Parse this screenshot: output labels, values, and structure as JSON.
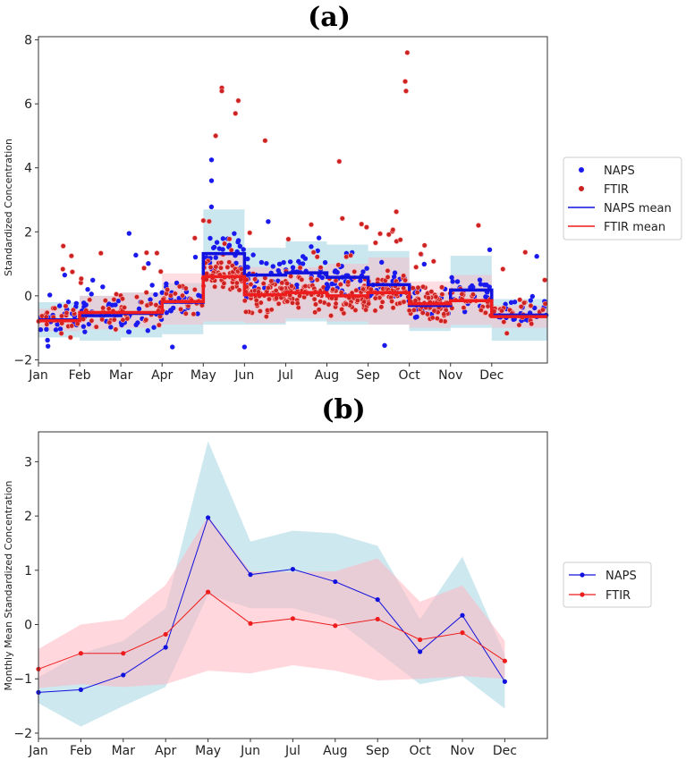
{
  "colors": {
    "naps": "#1111dd",
    "ftir": "#ee1c1c",
    "naps_scatter": "#1a1aee",
    "ftir_scatter": "#cc2222",
    "naps_band": "#add8e6",
    "ftir_band": "#ffb6c1"
  },
  "chart_data": [
    {
      "panel": "(a)",
      "type": "scatter",
      "title": "(a)",
      "ylabel": "Standardized Concentration",
      "xlabel": "",
      "ylim": [
        -2.1,
        8.1
      ],
      "xlim": [
        0,
        12.35
      ],
      "grid": false,
      "legend_position": "right",
      "month_ticks": [
        "Jan",
        "Feb",
        "Mar",
        "Apr",
        "May",
        "Jun",
        "Jul",
        "Aug",
        "Sep",
        "Oct",
        "Nov",
        "Dec"
      ],
      "y_ticks": [
        -2,
        0,
        2,
        4,
        6,
        8
      ],
      "legend": [
        "NAPS",
        "FTIR",
        "NAPS mean",
        "FTIR mean"
      ],
      "naps_monthly_mean": [
        -0.75,
        -0.62,
        -0.55,
        -0.2,
        1.32,
        0.65,
        0.72,
        0.58,
        0.35,
        -0.3,
        0.18,
        -0.6
      ],
      "ftir_monthly_mean": [
        -0.78,
        -0.52,
        -0.52,
        -0.18,
        0.6,
        0.03,
        0.1,
        0.0,
        0.1,
        -0.25,
        -0.15,
        -0.65
      ],
      "naps_band_low": [
        -1.3,
        -1.4,
        -1.3,
        -1.2,
        -0.9,
        -0.9,
        -0.8,
        -0.9,
        -0.9,
        -1.1,
        -1.0,
        -1.4
      ],
      "naps_band_high": [
        -0.2,
        0.0,
        0.1,
        0.4,
        2.7,
        1.5,
        1.7,
        1.6,
        1.4,
        0.1,
        1.25,
        -0.1
      ],
      "ftir_band_low": [
        -1.1,
        -1.05,
        -1.0,
        -0.9,
        -0.8,
        -0.85,
        -0.7,
        -0.8,
        -0.9,
        -1.0,
        -0.9,
        -1.0
      ],
      "ftir_band_high": [
        -0.4,
        0.0,
        0.1,
        0.7,
        1.3,
        0.9,
        0.9,
        1.0,
        1.2,
        0.45,
        0.65,
        -0.3
      ],
      "highlight_points": [
        {
          "series": "FTIR",
          "x": 4.45,
          "y": 6.5
        },
        {
          "series": "FTIR",
          "x": 4.45,
          "y": 6.4
        },
        {
          "series": "FTIR",
          "x": 4.85,
          "y": 6.1
        },
        {
          "series": "FTIR",
          "x": 4.78,
          "y": 5.7
        },
        {
          "series": "FTIR",
          "x": 4.3,
          "y": 5.0
        },
        {
          "series": "FTIR",
          "x": 5.5,
          "y": 4.85
        },
        {
          "series": "FTIR",
          "x": 7.3,
          "y": 4.2
        },
        {
          "series": "FTIR",
          "x": 8.95,
          "y": 7.6
        },
        {
          "series": "FTIR",
          "x": 8.9,
          "y": 6.7
        },
        {
          "series": "FTIR",
          "x": 8.92,
          "y": 6.4
        },
        {
          "series": "NAPS",
          "x": 4.2,
          "y": 4.25
        },
        {
          "series": "NAPS",
          "x": 4.2,
          "y": 3.6
        },
        {
          "series": "NAPS",
          "x": 2.2,
          "y": 1.95
        },
        {
          "series": "NAPS",
          "x": 5.0,
          "y": -1.6
        },
        {
          "series": "NAPS",
          "x": 8.4,
          "y": -1.55
        },
        {
          "series": "NAPS",
          "x": 3.25,
          "y": -1.6
        }
      ]
    },
    {
      "panel": "(b)",
      "type": "line",
      "title": "(b)",
      "ylabel": "Monthly Mean Standardized Concentration",
      "xlabel": "",
      "ylim": [
        -2.1,
        3.55
      ],
      "grid": false,
      "legend_position": "right",
      "categories": [
        "Jan",
        "Feb",
        "Mar",
        "Apr",
        "May",
        "Jun",
        "Jul",
        "Aug",
        "Sep",
        "Oct",
        "Nov",
        "Dec"
      ],
      "y_ticks": [
        -2,
        -1,
        0,
        1,
        2,
        3
      ],
      "series": [
        {
          "name": "NAPS",
          "values": [
            -1.25,
            -1.2,
            -0.93,
            -0.42,
            1.97,
            0.92,
            1.02,
            0.79,
            0.46,
            -0.5,
            0.17,
            -1.05
          ],
          "band_low": [
            -1.45,
            -1.88,
            -1.5,
            -1.15,
            0.55,
            0.3,
            0.3,
            0.1,
            -0.5,
            -1.1,
            -0.95,
            -1.55
          ],
          "band_high": [
            -0.97,
            -0.53,
            -0.3,
            0.3,
            3.38,
            1.53,
            1.73,
            1.68,
            1.45,
            0.1,
            1.25,
            -0.55
          ]
        },
        {
          "name": "FTIR",
          "values": [
            -0.82,
            -0.53,
            -0.53,
            -0.18,
            0.6,
            0.02,
            0.11,
            -0.02,
            0.1,
            -0.28,
            -0.15,
            -0.67
          ],
          "band_low": [
            -1.17,
            -1.1,
            -1.15,
            -1.1,
            -0.85,
            -0.9,
            -0.75,
            -0.85,
            -1.03,
            -1.0,
            -0.95,
            -1.0
          ],
          "band_high": [
            -0.45,
            0.0,
            0.1,
            0.73,
            2.0,
            0.98,
            0.97,
            0.98,
            1.22,
            0.42,
            0.72,
            -0.3
          ]
        }
      ]
    }
  ]
}
